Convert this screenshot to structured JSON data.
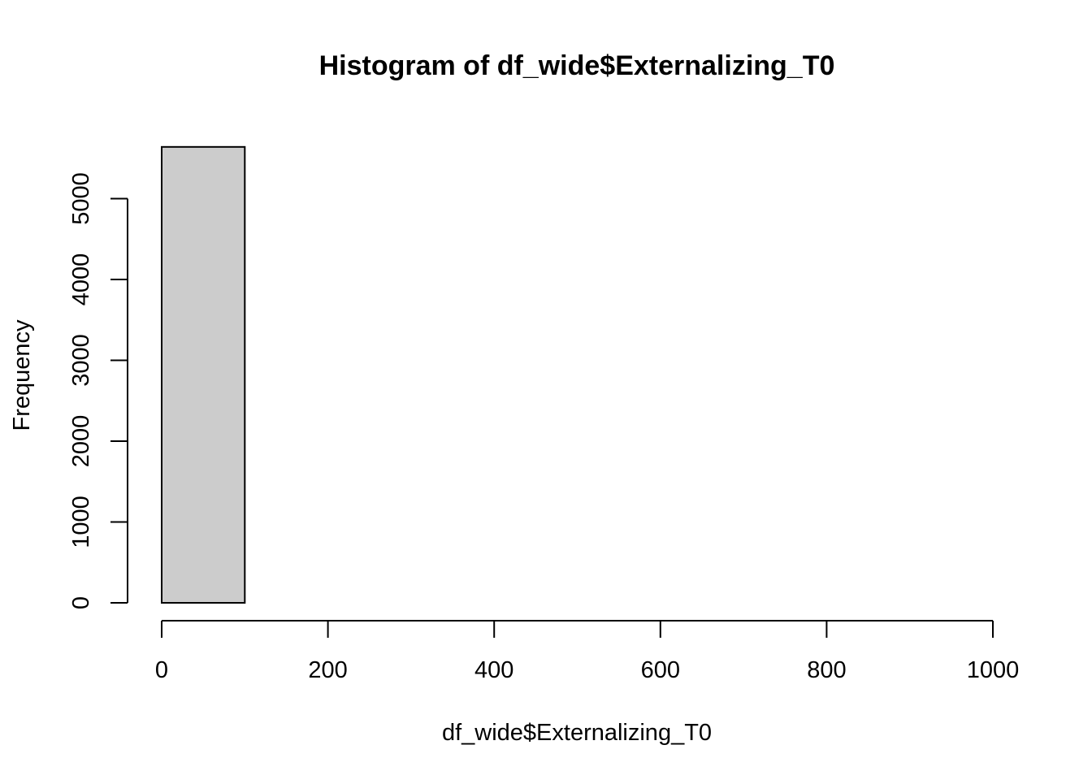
{
  "chart_data": {
    "type": "bar",
    "title": "Histogram of df_wide$Externalizing_T0",
    "xlabel": "df_wide$Externalizing_T0",
    "ylabel": "Frequency",
    "bin_edges": [
      0,
      100,
      200,
      300,
      400,
      500,
      600,
      700,
      800,
      900,
      1000
    ],
    "counts": [
      5640,
      0,
      0,
      0,
      0,
      0,
      0,
      0,
      0,
      0
    ],
    "xlim": [
      0,
      1000
    ],
    "ylim": [
      0,
      5640
    ],
    "x_ticks": [
      0,
      200,
      400,
      600,
      800,
      1000
    ],
    "y_ticks": [
      0,
      1000,
      2000,
      3000,
      4000,
      5000
    ],
    "bar_fill": "#cccccc",
    "bar_stroke": "#000000",
    "grid": false,
    "legend": "none"
  }
}
